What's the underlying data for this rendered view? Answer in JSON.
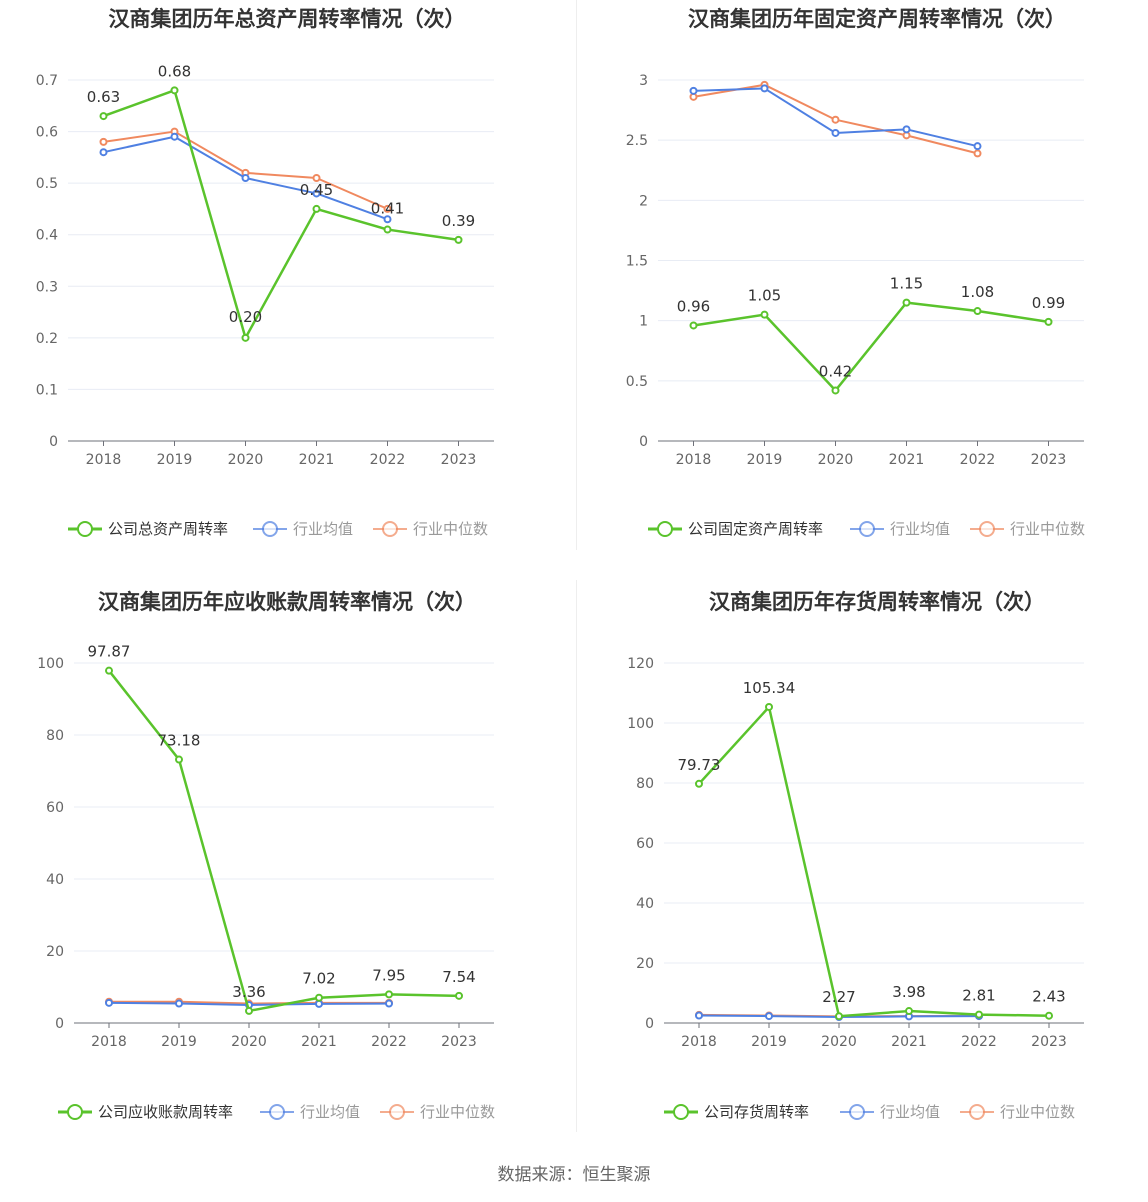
{
  "footer": {
    "source": "数据来源：恒生聚源"
  },
  "chart_data": [
    {
      "type": "line",
      "title": "汉商集团历年总资产周转率情况（次）",
      "categories": [
        "2018",
        "2019",
        "2020",
        "2021",
        "2022",
        "2023"
      ],
      "ylim": [
        0,
        0.7
      ],
      "yticks": [
        0,
        0.1,
        0.2,
        0.3,
        0.4,
        0.5,
        0.6,
        0.7
      ],
      "ytick_labels": [
        "0",
        "0.1",
        "0.2",
        "0.3",
        "0.4",
        "0.5",
        "0.6",
        "0.7"
      ],
      "series": [
        {
          "name": "公司总资产周转率",
          "color": "#5ac32c",
          "values": [
            0.63,
            0.68,
            0.2,
            0.45,
            0.41,
            0.39
          ],
          "labels": [
            "0.63",
            "0.68",
            "0.20",
            "0.45",
            "0.41",
            "0.39"
          ]
        },
        {
          "name": "行业均值",
          "color": "#4f80e2",
          "values": [
            0.56,
            0.59,
            0.51,
            0.48,
            0.43,
            null
          ]
        },
        {
          "name": "行业中位数",
          "color": "#f0895f",
          "values": [
            0.58,
            0.6,
            0.52,
            0.51,
            0.45,
            null
          ]
        }
      ]
    },
    {
      "type": "line",
      "title": "汉商集团历年固定资产周转率情况（次）",
      "categories": [
        "2018",
        "2019",
        "2020",
        "2021",
        "2022",
        "2023"
      ],
      "ylim": [
        0,
        3
      ],
      "yticks": [
        0,
        0.5,
        1,
        1.5,
        2,
        2.5,
        3
      ],
      "ytick_labels": [
        "0",
        "0.5",
        "1",
        "1.5",
        "2",
        "2.5",
        "3"
      ],
      "series": [
        {
          "name": "公司固定资产周转率",
          "color": "#5ac32c",
          "values": [
            0.96,
            1.05,
            0.42,
            1.15,
            1.08,
            0.99
          ],
          "labels": [
            "0.96",
            "1.05",
            "0.42",
            "1.15",
            "1.08",
            "0.99"
          ]
        },
        {
          "name": "行业均值",
          "color": "#4f80e2",
          "values": [
            2.91,
            2.93,
            2.56,
            2.59,
            2.45,
            null
          ]
        },
        {
          "name": "行业中位数",
          "color": "#f0895f",
          "values": [
            2.86,
            2.96,
            2.67,
            2.54,
            2.39,
            null
          ]
        }
      ]
    },
    {
      "type": "line",
      "title": "汉商集团历年应收账款周转率情况（次）",
      "categories": [
        "2018",
        "2019",
        "2020",
        "2021",
        "2022",
        "2023"
      ],
      "ylim": [
        0,
        100
      ],
      "yticks": [
        0,
        20,
        40,
        60,
        80,
        100
      ],
      "ytick_labels": [
        "0",
        "20",
        "40",
        "60",
        "80",
        "100"
      ],
      "series": [
        {
          "name": "公司应收账款周转率",
          "color": "#5ac32c",
          "values": [
            97.87,
            73.18,
            3.36,
            7.02,
            7.95,
            7.54
          ],
          "labels": [
            "97.87",
            "73.18",
            "3.36",
            "7.02",
            "7.95",
            "7.54"
          ]
        },
        {
          "name": "行业均值",
          "color": "#4f80e2",
          "values": [
            5.6,
            5.4,
            5.0,
            5.3,
            5.4,
            null
          ]
        },
        {
          "name": "行业中位数",
          "color": "#f0895f",
          "values": [
            5.9,
            5.9,
            5.4,
            5.6,
            5.6,
            null
          ]
        }
      ]
    },
    {
      "type": "line",
      "title": "汉商集团历年存货周转率情况（次）",
      "categories": [
        "2018",
        "2019",
        "2020",
        "2021",
        "2022",
        "2023"
      ],
      "ylim": [
        0,
        120
      ],
      "yticks": [
        0,
        20,
        40,
        60,
        80,
        100,
        120
      ],
      "ytick_labels": [
        "0",
        "20",
        "40",
        "60",
        "80",
        "100",
        "120"
      ],
      "series": [
        {
          "name": "公司存货周转率",
          "color": "#5ac32c",
          "values": [
            79.73,
            105.34,
            2.27,
            3.98,
            2.81,
            2.43
          ],
          "labels": [
            "79.73",
            "105.34",
            "2.27",
            "3.98",
            "2.81",
            "2.43"
          ]
        },
        {
          "name": "行业均值",
          "color": "#4f80e2",
          "values": [
            2.5,
            2.3,
            2.0,
            2.2,
            2.3,
            null
          ]
        },
        {
          "name": "行业中位数",
          "color": "#f0895f",
          "values": [
            2.7,
            2.5,
            2.2,
            2.3,
            2.4,
            null
          ]
        }
      ]
    }
  ]
}
